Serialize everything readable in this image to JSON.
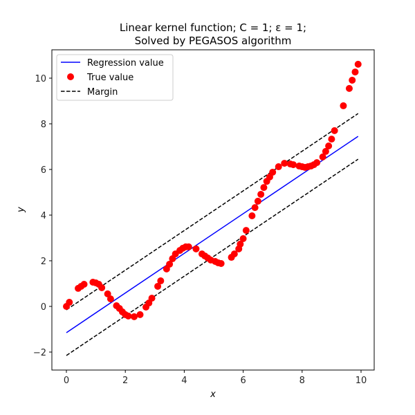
{
  "chart_data": {
    "type": "scatter",
    "title_line1": "Linear kernel function; C = 1; ε = 1;",
    "title_line2": "Solved by PEGASOS algorithm",
    "xlabel": "x",
    "ylabel": "y",
    "xlim": [
      -0.5,
      10.4
    ],
    "ylim": [
      -2.8,
      11.3
    ],
    "xticks": [
      0,
      2,
      4,
      6,
      8,
      10
    ],
    "yticks": [
      -2,
      0,
      2,
      4,
      6,
      8,
      10
    ],
    "ytick_labels": [
      "−2",
      "0",
      "2",
      "4",
      "6",
      "8",
      "10"
    ],
    "xtick_labels": [
      "0",
      "2",
      "4",
      "6",
      "8",
      "10"
    ],
    "grid": false,
    "legend_position": "upper left",
    "legend": [
      {
        "label": "Regression value",
        "style": "solid-line",
        "color": "#0000ff"
      },
      {
        "label": "True value",
        "style": "marker-circle",
        "color": "#ff0000"
      },
      {
        "label": "Margin",
        "style": "dashed-line",
        "color": "#000000"
      }
    ],
    "series": [
      {
        "name": "Regression value",
        "type": "line",
        "color": "#0000ff",
        "x": [
          0,
          9.9
        ],
        "y": [
          -1.15,
          7.45
        ]
      },
      {
        "name": "Margin upper",
        "type": "line",
        "dashed": true,
        "color": "#000000",
        "x": [
          0,
          9.9
        ],
        "y": [
          -0.15,
          8.45
        ]
      },
      {
        "name": "Margin lower",
        "type": "line",
        "dashed": true,
        "color": "#000000",
        "x": [
          0,
          9.9
        ],
        "y": [
          -2.15,
          6.45
        ]
      },
      {
        "name": "True value",
        "type": "scatter",
        "color": "#ff0000",
        "points": [
          [
            0.0,
            0.0
          ],
          [
            0.1,
            0.18
          ],
          [
            0.4,
            0.79
          ],
          [
            0.5,
            0.88
          ],
          [
            0.6,
            0.97
          ],
          [
            0.9,
            1.06
          ],
          [
            1.0,
            1.03
          ],
          [
            1.1,
            0.97
          ],
          [
            1.2,
            0.82
          ],
          [
            1.4,
            0.55
          ],
          [
            1.5,
            0.33
          ],
          [
            1.7,
            0.03
          ],
          [
            1.8,
            -0.09
          ],
          [
            1.9,
            -0.24
          ],
          [
            2.0,
            -0.36
          ],
          [
            2.1,
            -0.42
          ],
          [
            2.3,
            -0.45
          ],
          [
            2.5,
            -0.36
          ],
          [
            2.7,
            -0.03
          ],
          [
            2.8,
            0.15
          ],
          [
            2.9,
            0.36
          ],
          [
            3.1,
            0.88
          ],
          [
            3.2,
            1.12
          ],
          [
            3.4,
            1.64
          ],
          [
            3.5,
            1.85
          ],
          [
            3.6,
            2.09
          ],
          [
            3.7,
            2.3
          ],
          [
            3.85,
            2.45
          ],
          [
            3.95,
            2.55
          ],
          [
            4.05,
            2.61
          ],
          [
            4.15,
            2.61
          ],
          [
            4.4,
            2.52
          ],
          [
            4.6,
            2.3
          ],
          [
            4.7,
            2.21
          ],
          [
            4.8,
            2.12
          ],
          [
            4.9,
            2.03
          ],
          [
            5.05,
            1.97
          ],
          [
            5.15,
            1.91
          ],
          [
            5.25,
            1.88
          ],
          [
            5.6,
            2.15
          ],
          [
            5.7,
            2.3
          ],
          [
            5.85,
            2.52
          ],
          [
            5.9,
            2.73
          ],
          [
            6.0,
            2.97
          ],
          [
            6.1,
            3.33
          ],
          [
            6.3,
            3.97
          ],
          [
            6.4,
            4.33
          ],
          [
            6.5,
            4.61
          ],
          [
            6.6,
            4.91
          ],
          [
            6.7,
            5.21
          ],
          [
            6.8,
            5.48
          ],
          [
            6.9,
            5.67
          ],
          [
            7.0,
            5.88
          ],
          [
            7.2,
            6.12
          ],
          [
            7.4,
            6.27
          ],
          [
            7.6,
            6.24
          ],
          [
            7.7,
            6.21
          ],
          [
            7.9,
            6.15
          ],
          [
            8.0,
            6.12
          ],
          [
            8.1,
            6.09
          ],
          [
            8.2,
            6.12
          ],
          [
            8.3,
            6.15
          ],
          [
            8.4,
            6.21
          ],
          [
            8.5,
            6.3
          ],
          [
            8.7,
            6.55
          ],
          [
            8.8,
            6.79
          ],
          [
            8.9,
            7.03
          ],
          [
            9.0,
            7.33
          ],
          [
            9.1,
            7.7
          ],
          [
            9.4,
            8.79
          ],
          [
            9.6,
            9.55
          ],
          [
            9.7,
            9.91
          ],
          [
            9.8,
            10.27
          ],
          [
            9.9,
            10.61
          ]
        ]
      }
    ]
  }
}
